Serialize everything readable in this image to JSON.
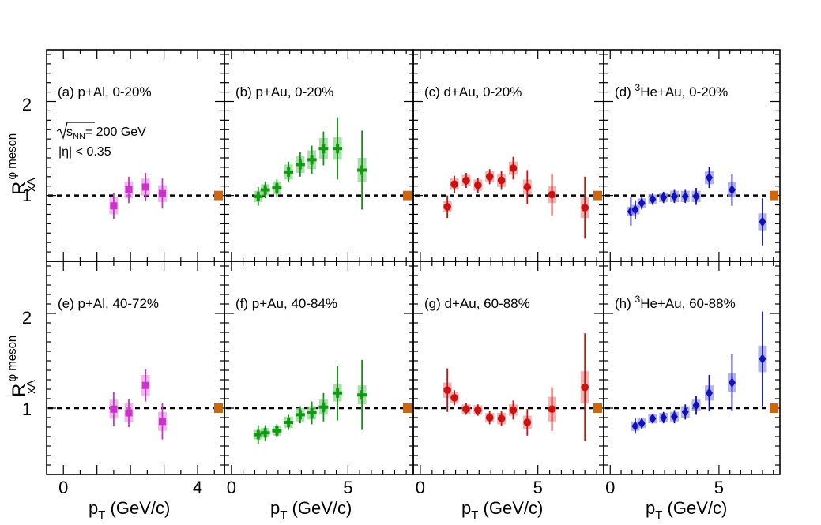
{
  "figure": {
    "y_axis_label": {
      "main": "R",
      "sup": "φ meson",
      "sub": "xA"
    },
    "x_axis_label": {
      "main": "p",
      "sub": "T",
      "rest": " (GeV/c)"
    },
    "annotation_energy": {
      "sqrt": "s",
      "sub": "NN",
      "rest": "= 200 GeV"
    },
    "annotation_eta": "|η| < 0.35",
    "y_tick_labels": [
      "1",
      "2"
    ]
  },
  "chart_data": [
    {
      "type": "scatter",
      "panel": "a",
      "label_prefix": "(a) ",
      "system": "p+Al",
      "label_rest": ", 0-20%",
      "xlim": [
        -0.5,
        4.8
      ],
      "ylim": [
        0.3,
        2.55
      ],
      "xticks": [
        0,
        2,
        4
      ],
      "xtick_labels": [
        "0",
        "",
        "4"
      ],
      "marker": "square",
      "color": "#cc33cc",
      "box_color": "#e8a3e8",
      "norm_uncertainty": 0.05,
      "x": [
        1.5,
        1.95,
        2.45,
        2.95
      ],
      "y": [
        0.89,
        1.06,
        1.09,
        1.02
      ],
      "stat_err": [
        0.14,
        0.14,
        0.15,
        0.16
      ],
      "sys_err": [
        0.09,
        0.09,
        0.09,
        0.09
      ]
    },
    {
      "type": "scatter",
      "panel": "b",
      "label_prefix": "(b) ",
      "system": "p+Au",
      "label_rest": ", 0-20%",
      "xlim": [
        -0.3,
        7.8
      ],
      "ylim": [
        0.3,
        2.55
      ],
      "xticks": [
        0,
        5
      ],
      "xtick_labels": [
        "0",
        "5"
      ],
      "marker": "cross",
      "color": "#119911",
      "box_color": "#8fd38f",
      "norm_uncertainty": 0.05,
      "x": [
        1.15,
        1.45,
        1.95,
        2.45,
        2.95,
        3.45,
        3.95,
        4.55,
        5.6
      ],
      "y": [
        0.99,
        1.06,
        1.08,
        1.25,
        1.33,
        1.38,
        1.5,
        1.5,
        1.27
      ],
      "stat_err": [
        0.1,
        0.09,
        0.09,
        0.11,
        0.13,
        0.15,
        0.18,
        0.33,
        0.42
      ],
      "sys_err": [
        0.06,
        0.06,
        0.07,
        0.08,
        0.09,
        0.1,
        0.11,
        0.12,
        0.13
      ]
    },
    {
      "type": "scatter",
      "panel": "c",
      "label_prefix": "(c) ",
      "system": "d+Au",
      "label_rest": ", 0-20%",
      "xlim": [
        -0.3,
        7.8
      ],
      "ylim": [
        0.3,
        2.55
      ],
      "xticks": [
        0,
        5
      ],
      "xtick_labels": [
        "0",
        "5"
      ],
      "marker": "circle",
      "color": "#cc1111",
      "box_color": "#ee9999",
      "norm_uncertainty": 0.05,
      "x": [
        1.15,
        1.45,
        1.95,
        2.45,
        2.95,
        3.45,
        3.95,
        4.55,
        5.6,
        7.0
      ],
      "y": [
        0.88,
        1.12,
        1.16,
        1.11,
        1.2,
        1.16,
        1.29,
        1.09,
        1.01,
        0.87
      ],
      "stat_err": [
        0.12,
        0.09,
        0.08,
        0.08,
        0.08,
        0.1,
        0.12,
        0.18,
        0.22,
        0.33
      ],
      "sys_err": [
        0.06,
        0.06,
        0.06,
        0.06,
        0.06,
        0.07,
        0.07,
        0.08,
        0.09,
        0.11
      ]
    },
    {
      "type": "scatter",
      "panel": "d",
      "label_prefix": "(d) ",
      "system": "³He+Au",
      "label_rest": ", 0-20%",
      "xlim": [
        -0.3,
        7.8
      ],
      "ylim": [
        0.3,
        2.55
      ],
      "xticks": [
        0,
        5
      ],
      "xtick_labels": [
        "0",
        "5"
      ],
      "marker": "diamond",
      "color": "#1111bb",
      "box_color": "#9999dd",
      "norm_uncertainty": 0.05,
      "x": [
        0.95,
        1.15,
        1.45,
        1.95,
        2.45,
        2.95,
        3.45,
        3.95,
        4.55,
        5.6,
        7.0
      ],
      "y": [
        0.83,
        0.85,
        0.92,
        0.96,
        0.98,
        0.99,
        0.99,
        0.99,
        1.19,
        1.06,
        0.72
      ],
      "stat_err": [
        0.15,
        0.1,
        0.07,
        0.06,
        0.06,
        0.07,
        0.07,
        0.09,
        0.11,
        0.17,
        0.25
      ],
      "sys_err": [
        0.05,
        0.05,
        0.05,
        0.05,
        0.05,
        0.06,
        0.06,
        0.06,
        0.07,
        0.08,
        0.09
      ]
    },
    {
      "type": "scatter",
      "panel": "e",
      "label_prefix": "(e) ",
      "system": "p+Al",
      "label_rest": ", 40-72%",
      "xlim": [
        -0.5,
        4.8
      ],
      "ylim": [
        0.3,
        2.55
      ],
      "xticks": [
        0,
        2,
        4
      ],
      "xtick_labels": [
        "0",
        "",
        "4"
      ],
      "marker": "square",
      "color": "#cc33cc",
      "box_color": "#e8a3e8",
      "norm_uncertainty": 0.05,
      "x": [
        1.5,
        1.95,
        2.45,
        2.95
      ],
      "y": [
        0.99,
        0.95,
        1.24,
        0.86
      ],
      "stat_err": [
        0.18,
        0.15,
        0.17,
        0.19
      ],
      "sys_err": [
        0.1,
        0.1,
        0.11,
        0.1
      ]
    },
    {
      "type": "scatter",
      "panel": "f",
      "label_prefix": "(f) ",
      "system": "p+Au",
      "label_rest": ", 40-84%",
      "xlim": [
        -0.3,
        7.8
      ],
      "ylim": [
        0.3,
        2.55
      ],
      "xticks": [
        0,
        5
      ],
      "xtick_labels": [
        "0",
        "5"
      ],
      "marker": "cross",
      "color": "#119911",
      "box_color": "#8fd38f",
      "norm_uncertainty": 0.05,
      "x": [
        1.15,
        1.45,
        1.95,
        2.45,
        2.95,
        3.45,
        3.95,
        4.55,
        5.6
      ],
      "y": [
        0.72,
        0.74,
        0.76,
        0.85,
        0.93,
        0.95,
        1.01,
        1.16,
        1.14
      ],
      "stat_err": [
        0.1,
        0.08,
        0.07,
        0.08,
        0.09,
        0.12,
        0.15,
        0.29,
        0.37
      ],
      "sys_err": [
        0.05,
        0.05,
        0.05,
        0.06,
        0.07,
        0.07,
        0.08,
        0.09,
        0.1
      ]
    },
    {
      "type": "scatter",
      "panel": "g",
      "label_prefix": "(g) ",
      "system": "d+Au",
      "label_rest": ", 60-88%",
      "xlim": [
        -0.3,
        7.8
      ],
      "ylim": [
        0.3,
        2.55
      ],
      "xticks": [
        0,
        5
      ],
      "xtick_labels": [
        "0",
        "5"
      ],
      "marker": "circle",
      "color": "#cc1111",
      "box_color": "#ee9999",
      "norm_uncertainty": 0.05,
      "x": [
        1.15,
        1.45,
        1.95,
        2.45,
        2.95,
        3.45,
        3.95,
        4.55,
        5.6,
        7.0
      ],
      "y": [
        1.19,
        1.11,
        0.99,
        0.98,
        0.9,
        0.89,
        0.98,
        0.85,
        0.99,
        1.22
      ],
      "stat_err": [
        0.23,
        0.08,
        0.06,
        0.06,
        0.07,
        0.08,
        0.1,
        0.14,
        0.23,
        0.57
      ],
      "sys_err": [
        0.08,
        0.06,
        0.05,
        0.05,
        0.05,
        0.06,
        0.06,
        0.07,
        0.13,
        0.17
      ]
    },
    {
      "type": "scatter",
      "panel": "h",
      "label_prefix": "(h) ",
      "system": "³He+Au",
      "label_rest": ", 60-88%",
      "xlim": [
        -0.3,
        7.8
      ],
      "ylim": [
        0.3,
        2.55
      ],
      "xticks": [
        0,
        5
      ],
      "xtick_labels": [
        "0",
        "5"
      ],
      "marker": "diamond",
      "color": "#1111bb",
      "box_color": "#9999dd",
      "norm_uncertainty": 0.05,
      "x": [
        1.15,
        1.45,
        1.95,
        2.45,
        2.95,
        3.45,
        3.95,
        4.55,
        5.6,
        7.0
      ],
      "y": [
        0.81,
        0.84,
        0.89,
        0.9,
        0.91,
        0.96,
        1.03,
        1.16,
        1.27,
        1.52
      ],
      "stat_err": [
        0.08,
        0.06,
        0.05,
        0.06,
        0.07,
        0.08,
        0.1,
        0.19,
        0.3,
        0.5
      ],
      "sys_err": [
        0.05,
        0.05,
        0.05,
        0.05,
        0.05,
        0.06,
        0.06,
        0.08,
        0.1,
        0.14
      ]
    }
  ]
}
